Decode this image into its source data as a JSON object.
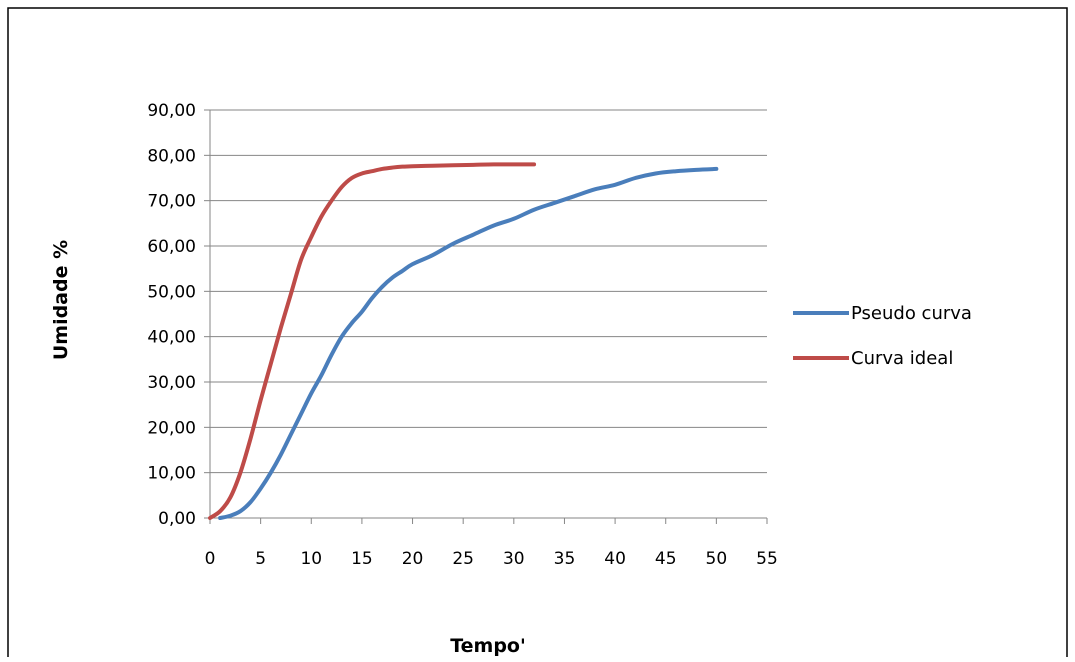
{
  "chart_data": {
    "type": "line",
    "xlabel": "Tempo'",
    "ylabel": "Umidade %",
    "xlim": [
      0,
      55
    ],
    "ylim": [
      0,
      90
    ],
    "x_ticks": [
      "0",
      "5",
      "10",
      "15",
      "20",
      "25",
      "30",
      "35",
      "40",
      "45",
      "50",
      "55"
    ],
    "y_ticks": [
      "0,00",
      "10,00",
      "20,00",
      "30,00",
      "40,00",
      "50,00",
      "60,00",
      "70,00",
      "80,00",
      "90,00"
    ],
    "grid": "horizontal",
    "legend_position": "right",
    "series": [
      {
        "name": "Pseudo curva",
        "color": "#4a7ebb",
        "x": [
          1,
          2,
          3,
          4,
          5,
          6,
          7,
          8,
          9,
          10,
          11,
          12,
          13,
          14,
          15,
          16,
          17,
          18,
          19,
          20,
          22,
          24,
          26,
          28,
          30,
          32,
          34,
          36,
          38,
          40,
          42,
          44,
          46,
          48,
          50
        ],
        "y": [
          0,
          0.5,
          1.5,
          3.5,
          6.5,
          10,
          14,
          18.5,
          23,
          27.5,
          31.5,
          36,
          40,
          43,
          45.5,
          48.5,
          51,
          53,
          54.5,
          56,
          58,
          60.5,
          62.5,
          64.5,
          66,
          68,
          69.5,
          71,
          72.5,
          73.5,
          75,
          76,
          76.5,
          76.8,
          77
        ]
      },
      {
        "name": "Curva ideal",
        "color": "#be4b48",
        "x": [
          0,
          1,
          2,
          3,
          4,
          5,
          6,
          7,
          8,
          9,
          10,
          11,
          12,
          13,
          14,
          15,
          16,
          17,
          18,
          19,
          20,
          22,
          24,
          26,
          28,
          30,
          32
        ],
        "y": [
          0,
          1.5,
          4.5,
          10,
          17.5,
          26,
          34,
          42,
          49.5,
          57,
          62,
          66.5,
          70,
          73,
          75,
          76,
          76.5,
          77,
          77.3,
          77.5,
          77.6,
          77.7,
          77.8,
          77.9,
          78,
          78,
          78
        ]
      }
    ]
  }
}
